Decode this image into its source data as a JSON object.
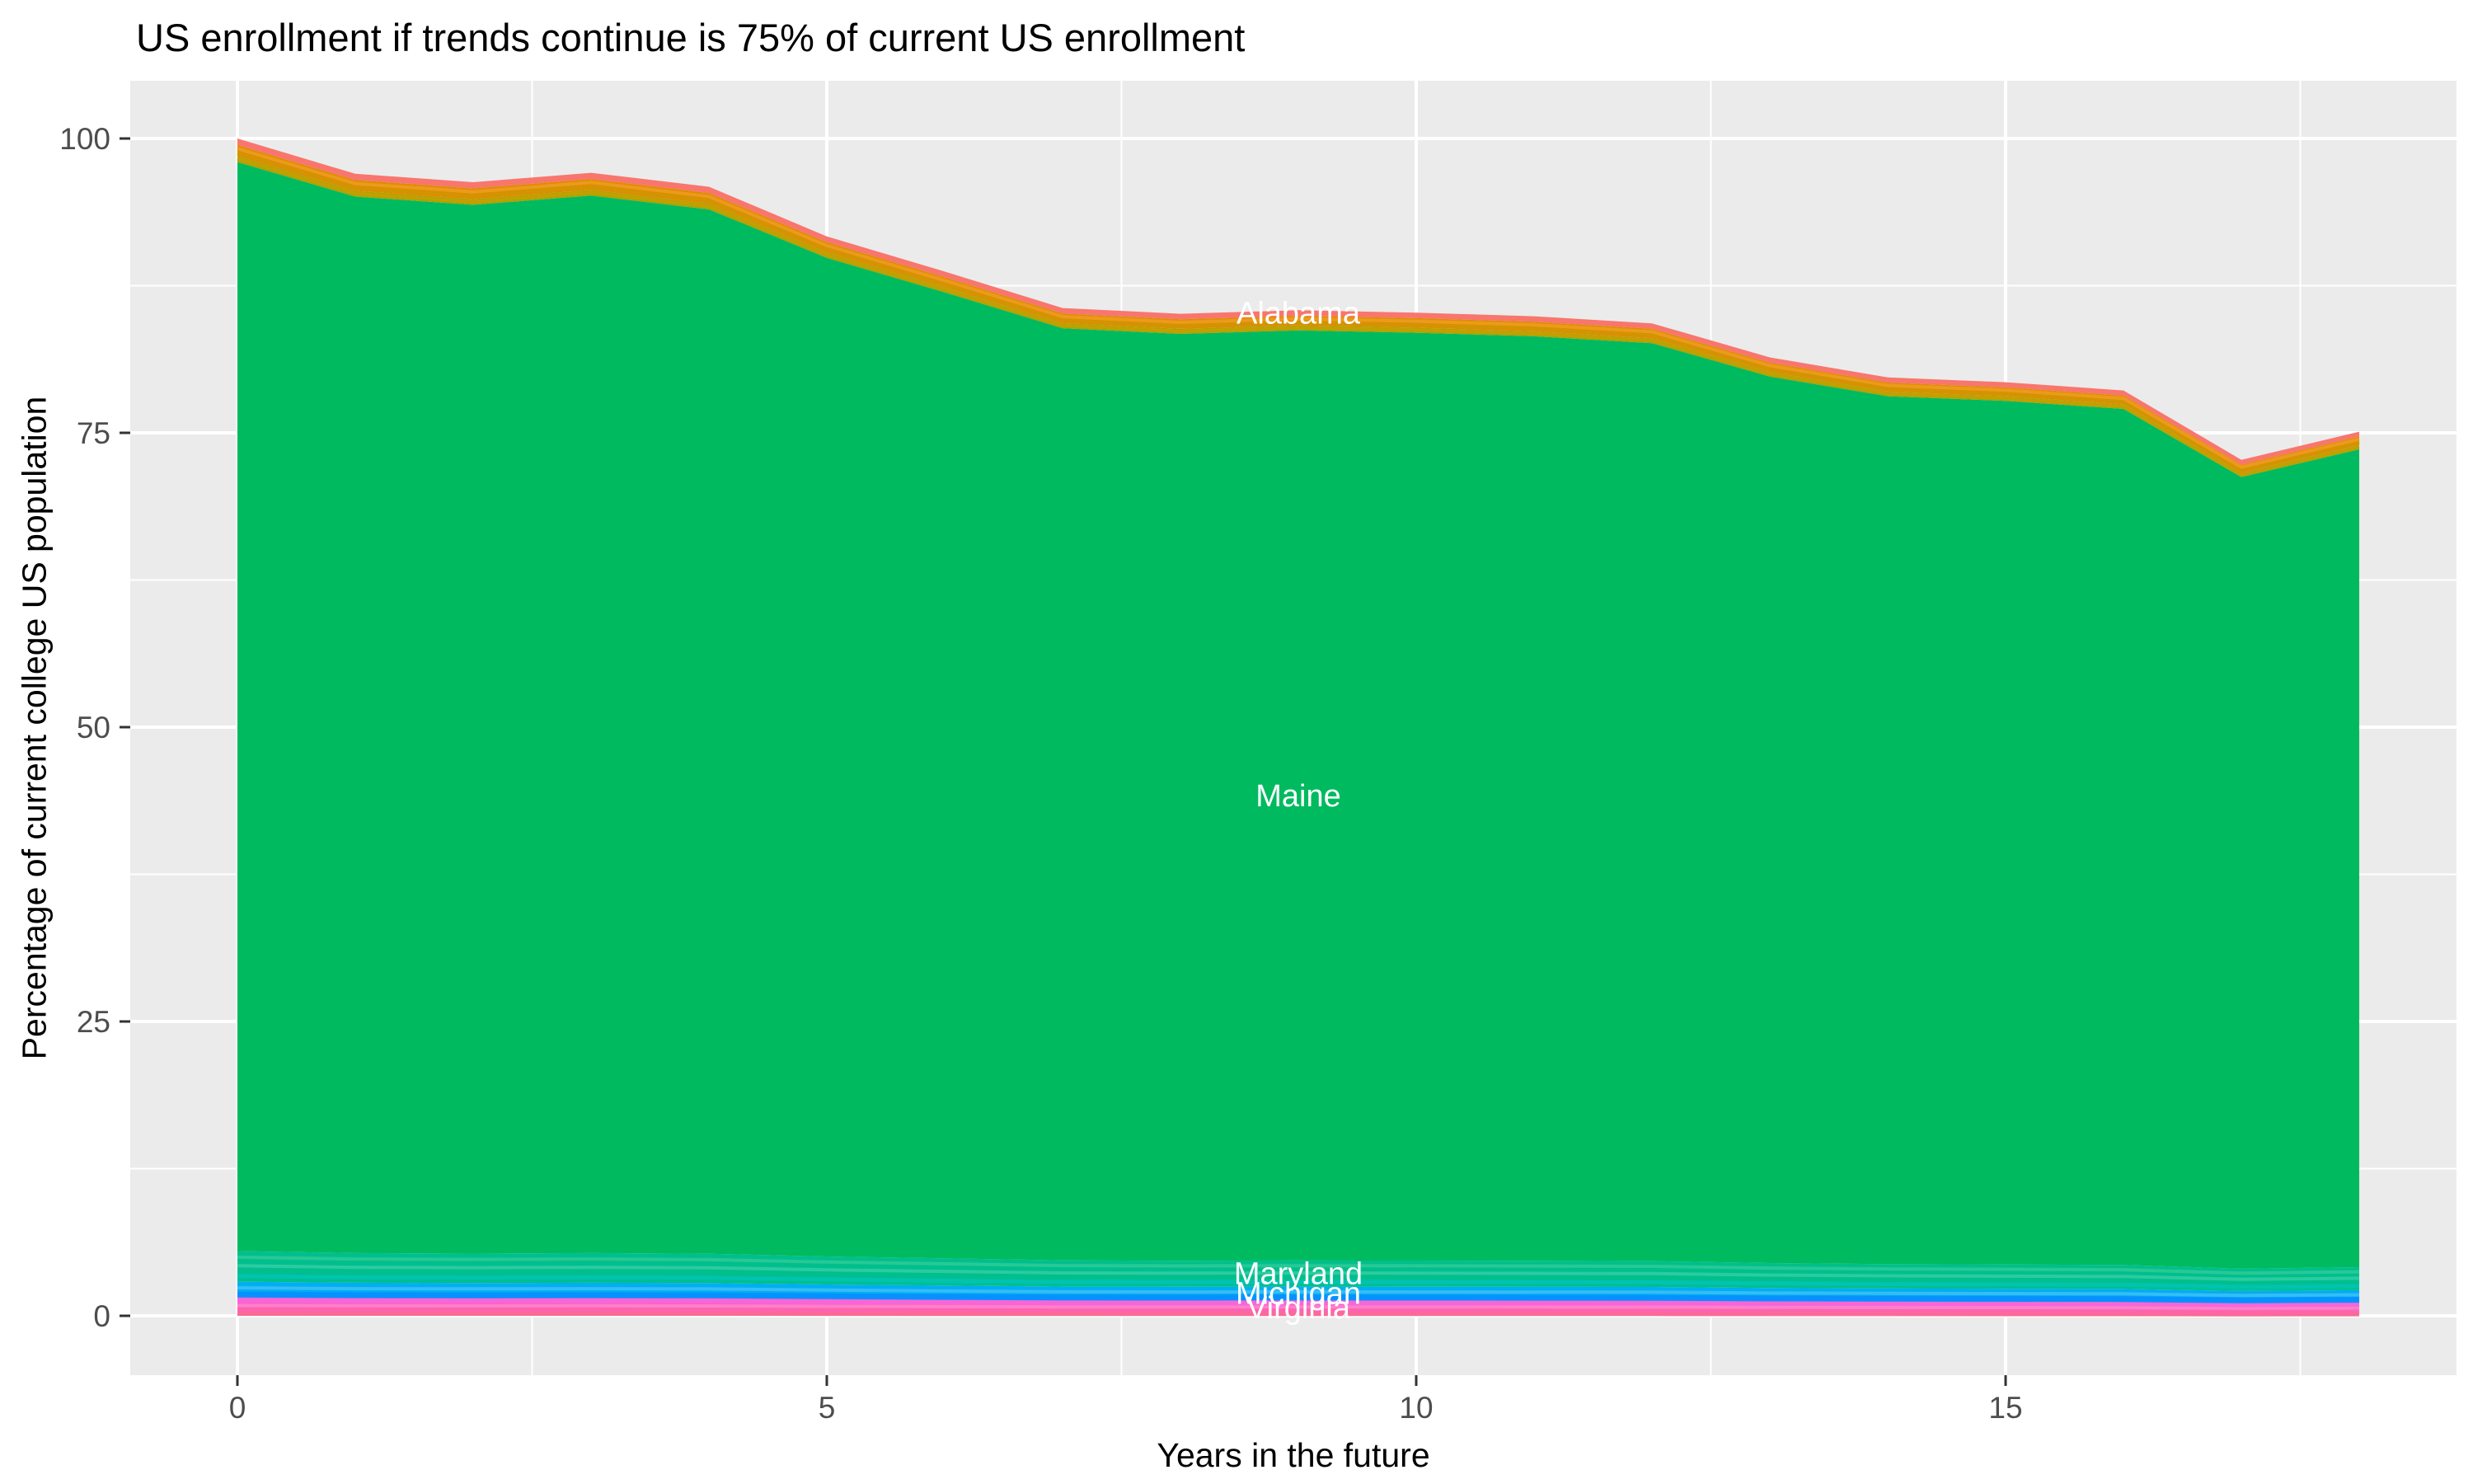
{
  "chart_data": {
    "type": "area",
    "stacked": true,
    "title": "US enrollment if trends continue is 75% of current US enrollment",
    "xlabel": "Years in the future",
    "ylabel": "Percentage of current college US population",
    "legend": "none",
    "grid": true,
    "x": [
      0,
      1,
      2,
      3,
      4,
      5,
      6,
      7,
      8,
      9,
      10,
      11,
      12,
      13,
      14,
      15,
      16,
      17,
      18
    ],
    "xlim": [
      -0.9,
      18.9
    ],
    "ylim": [
      -5,
      105.5
    ],
    "x_major_ticks": [
      0,
      5,
      10,
      15
    ],
    "x_minor_ticks": [
      2.5,
      7.5,
      12.5,
      17.5
    ],
    "y_major_ticks": [
      0,
      25,
      50,
      75,
      100
    ],
    "y_minor_ticks": [
      12.5,
      37.5,
      62.5,
      87.5
    ],
    "total_by_year": [
      100.0,
      97.0,
      96.3,
      97.1,
      95.9,
      91.7,
      88.7,
      85.6,
      85.1,
      85.4,
      85.2,
      84.9,
      84.3,
      81.4,
      79.7,
      79.3,
      78.6,
      72.7,
      75.1
    ],
    "label_anchor_year": 9,
    "series": [
      {
        "name": "virginia-group",
        "label": "Virginia",
        "color": "#FC5EC3",
        "values": [
          1.6,
          1.55,
          1.54,
          1.55,
          1.53,
          1.47,
          1.42,
          1.37,
          1.36,
          1.37,
          1.36,
          1.36,
          1.35,
          1.3,
          1.28,
          1.27,
          1.26,
          1.16,
          1.2
        ],
        "stripes": [
          {
            "frac": 0.14,
            "color": "#FB6A93",
            "w": 6
          },
          {
            "frac": 0.34,
            "color": "#FD64AE",
            "w": 6
          },
          {
            "frac": 0.55,
            "color": "#FF7FCA",
            "w": 4
          },
          {
            "frac": 0.82,
            "color": "#F766D8",
            "w": 6
          }
        ]
      },
      {
        "name": "michigan",
        "label": "Michigan",
        "color": "#00AEF3",
        "values": [
          1.3,
          1.26,
          1.25,
          1.26,
          1.25,
          1.19,
          1.15,
          1.11,
          1.11,
          1.11,
          1.11,
          1.1,
          1.1,
          1.06,
          1.04,
          1.03,
          1.02,
          0.95,
          0.98
        ],
        "stripes": [
          {
            "frac": 0.16,
            "color": "#0791FF",
            "w": 7
          },
          {
            "frac": 0.6,
            "color": "#35BDF4",
            "w": 4
          }
        ]
      },
      {
        "name": "maryland",
        "label": "Maryland",
        "color": "#00BF8D",
        "values": [
          2.6,
          2.52,
          2.5,
          2.52,
          2.49,
          2.38,
          2.31,
          2.23,
          2.21,
          2.22,
          2.22,
          2.21,
          2.19,
          2.12,
          2.07,
          2.06,
          2.04,
          1.89,
          1.95
        ],
        "stripes": [
          {
            "frac": 0.18,
            "color": "#00C3B0",
            "w": 5
          },
          {
            "frac": 0.52,
            "color": "#2BCBA0",
            "w": 4
          },
          {
            "frac": 0.8,
            "color": "#27C995",
            "w": 4
          }
        ]
      },
      {
        "name": "maine",
        "label": "Maine",
        "color": "#00BA60",
        "values": [
          92.5,
          89.73,
          89.08,
          89.82,
          88.71,
          84.82,
          82.05,
          79.18,
          78.72,
          79.0,
          78.81,
          78.53,
          77.98,
          75.3,
          73.72,
          73.35,
          72.71,
          67.25,
          69.47
        ],
        "stripes": []
      },
      {
        "name": "olive-group",
        "label": null,
        "color": "#ADA200",
        "values": [
          0.5,
          0.49,
          0.48,
          0.49,
          0.48,
          0.46,
          0.44,
          0.43,
          0.43,
          0.43,
          0.43,
          0.42,
          0.42,
          0.41,
          0.4,
          0.4,
          0.39,
          0.36,
          0.38
        ],
        "stripes": [
          {
            "frac": 0.55,
            "color": "#C2A000",
            "w": 4
          }
        ]
      },
      {
        "name": "orange-group",
        "label": null,
        "color": "#DF8C00",
        "values": [
          0.95,
          0.92,
          0.91,
          0.92,
          0.91,
          0.87,
          0.84,
          0.81,
          0.81,
          0.81,
          0.81,
          0.81,
          0.8,
          0.77,
          0.76,
          0.75,
          0.75,
          0.69,
          0.71
        ],
        "stripes": [
          {
            "frac": 0.3,
            "color": "#D29400",
            "w": 4
          },
          {
            "frac": 0.68,
            "color": "#EC9A1C",
            "w": 4
          }
        ]
      },
      {
        "name": "alabama",
        "label": "Alabama",
        "color": "#F8766D",
        "values": [
          0.55,
          0.53,
          0.53,
          0.53,
          0.53,
          0.5,
          0.49,
          0.47,
          0.47,
          0.47,
          0.47,
          0.47,
          0.46,
          0.45,
          0.44,
          0.44,
          0.43,
          0.4,
          0.41
        ],
        "stripes": []
      }
    ],
    "style": {
      "panel_bg": "#EBEBEB",
      "grid_color": "#FFFFFF",
      "tick_mark_color": "#333333",
      "tick_label_color": "#4D4D4D",
      "area_label_color": "#FFFFFF",
      "title_color": "#000000"
    }
  }
}
